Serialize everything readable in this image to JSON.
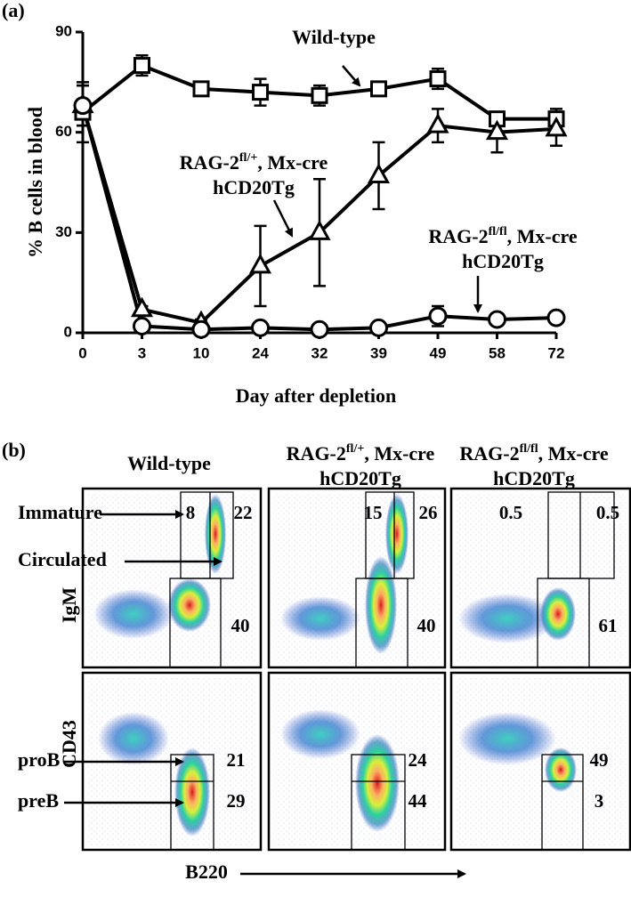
{
  "panel_labels": [
    "(a)",
    "(b)"
  ],
  "chart_data": {
    "type": "line",
    "y_label": "% B cells in blood",
    "x_label": "Day after depletion",
    "categories": [
      "0",
      "3",
      "10",
      "24",
      "32",
      "39",
      "49",
      "58",
      "72"
    ],
    "ylim": [
      0,
      90
    ],
    "yticks": [
      0,
      30,
      60,
      90
    ],
    "color": "#000000",
    "series": [
      {
        "label": {
          "base": "Wild-type"
        },
        "marker": "square",
        "values": [
          66,
          80,
          73,
          72,
          71,
          73,
          76,
          64,
          64
        ],
        "errors": [
          9,
          3,
          2,
          4,
          3,
          2,
          3,
          2,
          3
        ]
      },
      {
        "label": {
          "base": "RAG-2",
          "sup": "fl/+",
          "rest": ", Mx-cre",
          "line2": "hCD20Tg"
        },
        "marker": "triangle",
        "values": [
          68,
          7,
          3,
          20,
          30,
          47,
          62,
          60,
          61
        ],
        "errors": [
          6,
          1,
          1,
          12,
          16,
          10,
          5,
          6,
          5
        ]
      },
      {
        "label": {
          "base": "RAG-2",
          "sup": "fl/fl",
          "rest": ", Mx-cre",
          "line2": "hCD20Tg"
        },
        "marker": "circle",
        "values": [
          68,
          2,
          1,
          1.5,
          1,
          1.5,
          5,
          4,
          4.5
        ],
        "errors": [
          6,
          1,
          0.5,
          0.5,
          0.5,
          0.5,
          3,
          1,
          1
        ]
      }
    ]
  },
  "flow": {
    "column_titles": [
      {
        "base": "Wild-type"
      },
      {
        "base": "RAG-2",
        "sup": "fl/+",
        "rest": ", Mx-cre",
        "line2": "hCD20Tg"
      },
      {
        "base": "RAG-2",
        "sup": "fl/fl",
        "rest": ", Mx-cre",
        "line2": "hCD20Tg"
      }
    ],
    "row_labels": [
      "IgM",
      "CD43"
    ],
    "x_label": "B220",
    "gate_names": [
      "Immature",
      "Circulated",
      "proB",
      "preB"
    ],
    "plots": [
      [
        [
          8,
          22,
          40
        ],
        [
          15,
          26,
          40
        ],
        [
          0.5,
          0.5,
          61
        ]
      ],
      [
        [
          21,
          29
        ],
        [
          24,
          44
        ],
        [
          49,
          3
        ]
      ]
    ]
  }
}
